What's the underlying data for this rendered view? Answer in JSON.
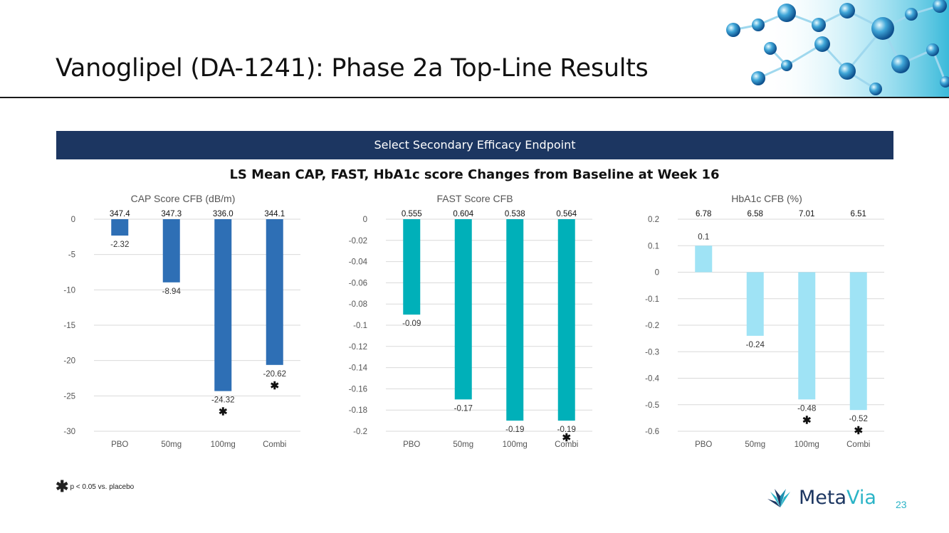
{
  "slide": {
    "title": "Vanoglipel (DA-1241): Phase 2a Top-Line Results",
    "banner": "Select Secondary Efficacy Endpoint",
    "heading": "LS Mean CAP, FAST, HbA1c score Changes from Baseline at Week 16",
    "footnote_symbol": "✱",
    "footnote": "p < 0.05 vs. placebo",
    "brand_prefix": "Meta",
    "brand_suffix": "Via",
    "page_number": "23"
  },
  "colors": {
    "banner": "#1c3661",
    "cap_bars": "#2e6fb5",
    "fast_bars": "#00b0b9",
    "hba1c_bars": "#9fe3f5",
    "brand_dark": "#1c3661",
    "brand_accent": "#2bb4c7"
  },
  "chart_data": [
    {
      "type": "bar",
      "title": "CAP Score CFB (dB/m)",
      "categories": [
        "PBO",
        "50mg",
        "100mg",
        "Combi"
      ],
      "values": [
        -2.32,
        -8.94,
        -24.32,
        -20.62
      ],
      "value_labels": [
        "-2.32",
        "-8.94",
        "-24.32",
        "-20.62"
      ],
      "baseline_labels": [
        "347.4",
        "347.3",
        "336.0",
        "344.1"
      ],
      "significant": [
        false,
        false,
        true,
        true
      ],
      "ylim": [
        -30,
        0
      ],
      "yticks": [
        0,
        -5,
        -10,
        -15,
        -20,
        -25,
        -30
      ],
      "ytick_labels": [
        "0",
        "-5",
        "-10",
        "-15",
        "-20",
        "-25",
        "-30"
      ],
      "grid": true,
      "color": "#2e6fb5"
    },
    {
      "type": "bar",
      "title": "FAST Score CFB",
      "categories": [
        "PBO",
        "50mg",
        "100mg",
        "Combi"
      ],
      "values": [
        -0.09,
        -0.17,
        -0.19,
        -0.19
      ],
      "value_labels": [
        "-0.09",
        "-0.17",
        "-0.19",
        "-0.19"
      ],
      "baseline_labels": [
        "0.555",
        "0.604",
        "0.538",
        "0.564"
      ],
      "significant": [
        false,
        false,
        false,
        true
      ],
      "ylim": [
        -0.2,
        0
      ],
      "yticks": [
        0,
        -0.02,
        -0.04,
        -0.06,
        -0.08,
        -0.1,
        -0.12,
        -0.14,
        -0.16,
        -0.18,
        -0.2
      ],
      "ytick_labels": [
        "0",
        "-0.02",
        "-0.04",
        "-0.06",
        "-0.08",
        "-0.1",
        "-0.12",
        "-0.14",
        "-0.16",
        "-0.18",
        "-0.2"
      ],
      "grid": true,
      "color": "#00b0b9"
    },
    {
      "type": "bar",
      "title": "HbA1c CFB (%)",
      "categories": [
        "PBO",
        "50mg",
        "100mg",
        "Combi"
      ],
      "values": [
        0.1,
        -0.24,
        -0.48,
        -0.52
      ],
      "value_labels": [
        "0.1",
        "-0.24",
        "-0.48",
        "-0.52"
      ],
      "baseline_labels": [
        "6.78",
        "6.58",
        "7.01",
        "6.51"
      ],
      "significant": [
        false,
        false,
        true,
        true
      ],
      "ylim": [
        -0.6,
        0.2
      ],
      "yticks": [
        0.2,
        0.1,
        0,
        -0.1,
        -0.2,
        -0.3,
        -0.4,
        -0.5,
        -0.6
      ],
      "ytick_labels": [
        "0.2",
        "0.1",
        "0",
        "-0.1",
        "-0.2",
        "-0.3",
        "-0.4",
        "-0.5",
        "-0.6"
      ],
      "grid": true,
      "color": "#9fe3f5"
    }
  ]
}
